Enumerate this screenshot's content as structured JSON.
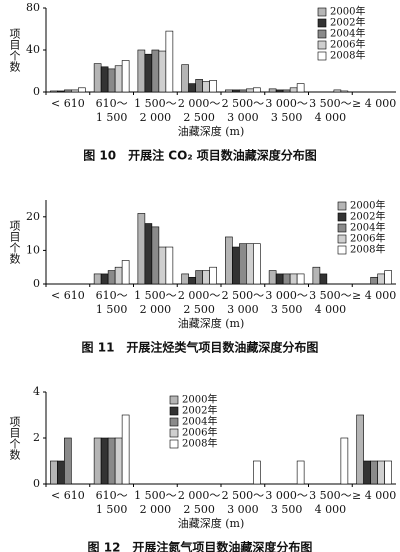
{
  "chart_data": [
    {
      "type": "bar",
      "title": "图 10　开展注 CO₂ 项目数油藏深度分布图",
      "ylabel": "项目个数",
      "xlabel": "油藏深度 (m)",
      "categories": [
        "< 610",
        "610～1 500",
        "1 500～2 000",
        "2 000～2 500",
        "2 500～3 000",
        "3 000～3 500",
        "3 500～4 000",
        "≥ 4 000"
      ],
      "series": [
        {
          "name": "2000年",
          "color": "#b5b5b5",
          "values": [
            1,
            27,
            40,
            26,
            2,
            3,
            0,
            0
          ]
        },
        {
          "name": "2002年",
          "color": "#333333",
          "values": [
            1,
            24,
            36,
            8,
            2,
            2,
            0,
            0
          ]
        },
        {
          "name": "2004年",
          "color": "#8a8a8a",
          "values": [
            2,
            22,
            40,
            12,
            2,
            2,
            0,
            0
          ]
        },
        {
          "name": "2006年",
          "color": "#cfcfcf",
          "values": [
            2,
            25,
            39,
            10,
            3,
            4,
            2,
            0
          ]
        },
        {
          "name": "2008年",
          "color": "#ffffff",
          "values": [
            4,
            30,
            58,
            11,
            4,
            8,
            1,
            0
          ]
        }
      ],
      "ylim": [
        0,
        80
      ],
      "yticks": [
        0,
        40,
        80
      ]
    },
    {
      "type": "bar",
      "title": "图 11　开展注烃类气项目数油藏深度分布图",
      "ylabel": "项目个数",
      "xlabel": "油藏深度 (m)",
      "categories": [
        "< 610",
        "610～1 500",
        "1 500～2 000",
        "2 000～2 500",
        "2 500～3 000",
        "3 000～3 500",
        "3 500～4 000",
        "≥ 4 000"
      ],
      "series": [
        {
          "name": "2000年",
          "color": "#b5b5b5",
          "values": [
            0,
            3,
            21,
            3,
            14,
            4,
            5,
            0
          ]
        },
        {
          "name": "2002年",
          "color": "#333333",
          "values": [
            0,
            3,
            18,
            2,
            11,
            3,
            3,
            0
          ]
        },
        {
          "name": "2004年",
          "color": "#8a8a8a",
          "values": [
            0,
            4,
            17,
            4,
            12,
            3,
            0,
            2
          ]
        },
        {
          "name": "2006年",
          "color": "#cfcfcf",
          "values": [
            0,
            5,
            11,
            4,
            12,
            3,
            0,
            3
          ]
        },
        {
          "name": "2008年",
          "color": "#ffffff",
          "values": [
            0,
            7,
            11,
            5,
            12,
            3,
            0,
            4
          ]
        }
      ],
      "ylim": [
        0,
        25
      ],
      "yticks": [
        0,
        10,
        20
      ]
    },
    {
      "type": "bar",
      "title": "图 12　开展注氮气项目数油藏深度分布图",
      "ylabel": "项目个数",
      "xlabel": "油藏深度 (m)",
      "categories": [
        "< 610",
        "610～1 500",
        "1 500～2 000",
        "2 000～2 500",
        "2 500～3 000",
        "3 000～3 500",
        "3 500～4 000",
        "≥ 4 000"
      ],
      "series": [
        {
          "name": "2000年",
          "color": "#b5b5b5",
          "values": [
            1,
            2,
            0,
            0,
            0,
            0,
            0,
            3
          ]
        },
        {
          "name": "2002年",
          "color": "#333333",
          "values": [
            1,
            2,
            0,
            0,
            0,
            0,
            0,
            1
          ]
        },
        {
          "name": "2004年",
          "color": "#8a8a8a",
          "values": [
            2,
            2,
            0,
            0,
            0,
            0,
            0,
            1
          ]
        },
        {
          "name": "2006年",
          "color": "#cfcfcf",
          "values": [
            0,
            2,
            0,
            0,
            0,
            0,
            0,
            1
          ]
        },
        {
          "name": "2008年",
          "color": "#ffffff",
          "values": [
            0,
            3,
            0,
            0,
            1,
            1,
            2,
            1
          ]
        }
      ],
      "ylim": [
        0,
        4
      ],
      "yticks": [
        0,
        2,
        4
      ]
    }
  ]
}
